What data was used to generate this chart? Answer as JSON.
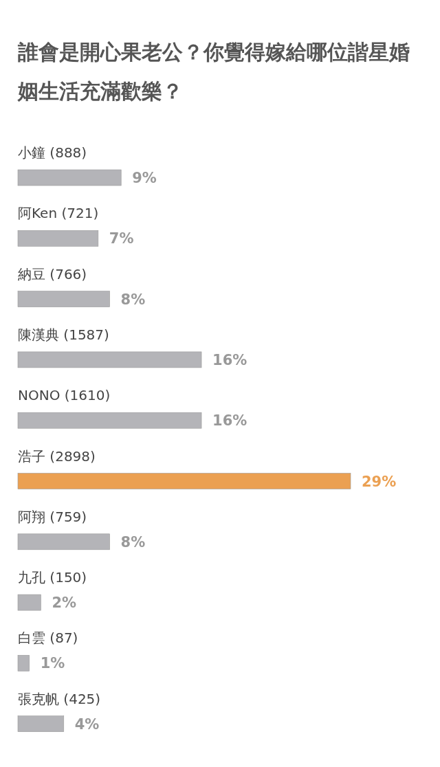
{
  "chart_data": {
    "type": "bar",
    "orientation": "horizontal",
    "title": "誰會是開心果老公？你覺得嫁給哪位諧星婚姻生活充滿歡樂？",
    "categories": [
      "小鐘 (888)",
      "阿Ken (721)",
      "納豆 (766)",
      "陳漢典 (1587)",
      "NONO (1610)",
      "浩子 (2898)",
      "阿翔 (759)",
      "九孔 (150)",
      "白雲 (87)",
      "張克帆 (425)"
    ],
    "values": [
      9,
      7,
      8,
      16,
      16,
      29,
      8,
      2,
      1,
      4
    ],
    "value_labels": [
      "9%",
      "7%",
      "8%",
      "16%",
      "16%",
      "29%",
      "8%",
      "2%",
      "1%",
      "4%"
    ],
    "colors": [
      "#b4b4b8",
      "#b4b4b8",
      "#b4b4b8",
      "#b4b4b8",
      "#b4b4b8",
      "#eba052",
      "#b4b4b8",
      "#b4b4b8",
      "#b4b4b8",
      "#b4b4b8"
    ]
  }
}
